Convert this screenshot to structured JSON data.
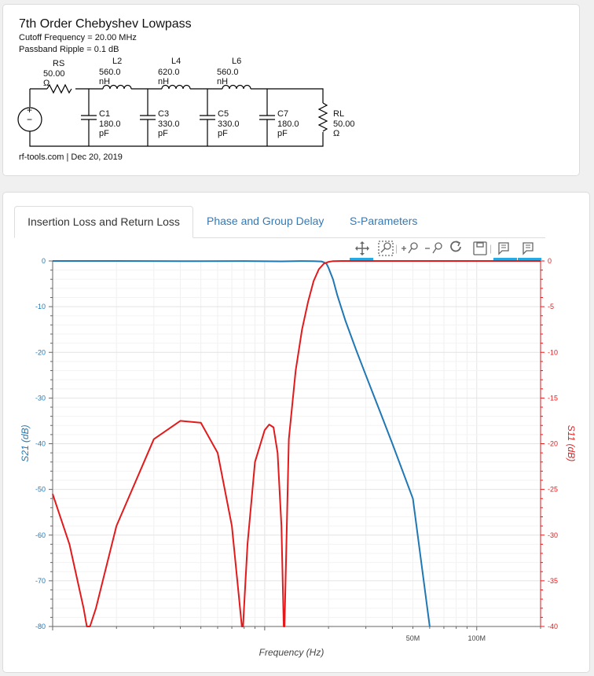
{
  "header": {
    "title": "7th Order Chebyshev Lowpass",
    "cutoff": "Cutoff Frequency = 20.00 MHz",
    "ripple": "Passband Ripple = 0.1 dB",
    "credit": "rf-tools.com | Dec 20, 2019"
  },
  "schematic": {
    "rs_name": "RS",
    "rs_value": "50.00 Ω",
    "l2_name": "L2",
    "l2_value": "560.0 nH",
    "l4_name": "L4",
    "l4_value": "620.0 nH",
    "l6_name": "L6",
    "l6_value": "560.0 nH",
    "c1_name": "C1",
    "c1_value": "180.0 pF",
    "c3_name": "C3",
    "c3_value": "330.0 pF",
    "c5_name": "C5",
    "c5_value": "330.0 pF",
    "c7_name": "C7",
    "c7_value": "180.0 pF",
    "rl_name": "RL",
    "rl_value": "50.00 Ω",
    "source_plus": "+",
    "source_minus": "−"
  },
  "tabs": [
    {
      "label": "Insertion Loss and Return Loss"
    },
    {
      "label": "Phase and Group Delay"
    },
    {
      "label": "S-Parameters"
    }
  ],
  "toolbar": [
    "pan-tool",
    "box-zoom-tool",
    "zoom-in-tool",
    "zoom-out-tool",
    "reset-tool",
    "save-tool",
    "hover-tool-s21",
    "hover-tool-s11"
  ],
  "colors": {
    "s21": "#1f77b4",
    "s11": "#e31a1c",
    "link": "#337ab7"
  },
  "chart_data": {
    "type": "line",
    "xlabel": "Frequency (Hz)",
    "ylabel_left": "S21 (dB)",
    "ylabel_right": "S11 (dB)",
    "x_scale": "log",
    "xlim": [
      1000000,
      200000000
    ],
    "x_tick_labels": [
      {
        "x": 50000000,
        "label": "50M"
      },
      {
        "x": 100000000,
        "label": "100M"
      }
    ],
    "ylim_left": [
      -80,
      0
    ],
    "yticks_left": [
      "0",
      "-10",
      "-20",
      "-30",
      "-40",
      "-50",
      "-60",
      "-70",
      "-80"
    ],
    "ylim_right": [
      -40,
      0
    ],
    "yticks_right": [
      "0",
      "-5",
      "-10",
      "-15",
      "-20",
      "-25",
      "-30",
      "-35",
      "-40"
    ],
    "grid": true,
    "series": [
      {
        "name": "S21",
        "axis": "left",
        "x": [
          1000000,
          2000000,
          4000000,
          8000000,
          12000000,
          15000000,
          17000000,
          18500000,
          19500000,
          20000000,
          21000000,
          22000000,
          24000000,
          27000000,
          30000000,
          35000000,
          40000000,
          50000000,
          60000000
        ],
        "y": [
          0,
          0,
          -0.05,
          -0.02,
          -0.08,
          -0.01,
          -0.06,
          -0.1,
          -0.5,
          -1.5,
          -4,
          -7.5,
          -13,
          -19.5,
          -25,
          -33,
          -40,
          -52,
          -80
        ]
      },
      {
        "name": "S11",
        "axis": "right",
        "x": [
          1000000,
          1200000,
          1400000,
          1450000,
          1500000,
          1600000,
          2000000,
          3000000,
          4000000,
          5000000,
          6000000,
          7000000,
          7500000,
          7800000,
          7900000,
          8300000,
          9000000,
          10000000,
          10500000,
          11000000,
          11500000,
          12000000,
          12300000,
          12400000,
          13000000,
          14000000,
          15000000,
          16000000,
          17000000,
          18000000,
          19000000,
          20000000,
          21000000,
          23000000,
          26000000,
          30000000,
          50000000,
          100000000,
          200000000
        ],
        "y": [
          -25.5,
          -31,
          -38,
          -40,
          -40,
          -38,
          -29,
          -19.5,
          -17.5,
          -17.7,
          -21,
          -29,
          -36,
          -40,
          -40,
          -31,
          -22,
          -18.5,
          -17.9,
          -18.2,
          -21,
          -29,
          -40,
          -40,
          -19.5,
          -12,
          -7.5,
          -4.5,
          -2.2,
          -0.9,
          -0.3,
          -0.1,
          -0.02,
          0,
          0,
          0,
          0,
          0,
          0
        ]
      }
    ]
  }
}
